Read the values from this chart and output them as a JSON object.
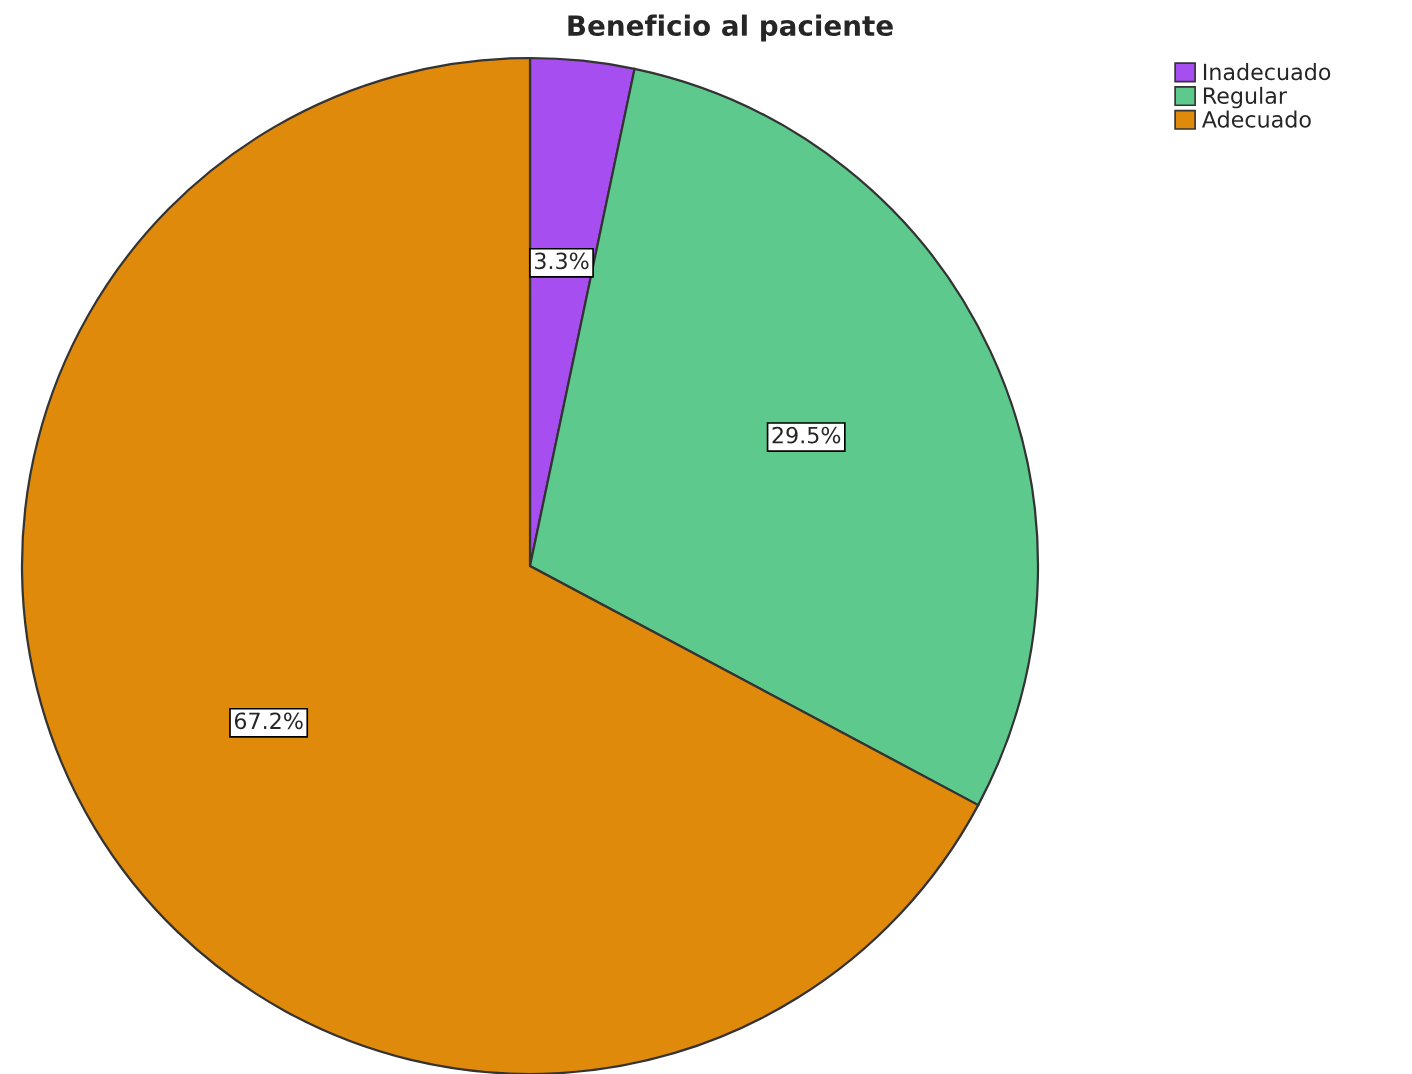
{
  "chart_data": {
    "type": "pie",
    "title": "Beneficio al paciente",
    "categories": [
      "Inadecuado",
      "Regular",
      "Adecuado"
    ],
    "values": [
      3.3,
      29.5,
      67.2
    ],
    "colors": [
      "#a64ef0",
      "#5ec98c",
      "#e08a0b"
    ],
    "value_labels": [
      "3.3%",
      "29.5%",
      "67.2%"
    ],
    "legend": "top right"
  }
}
